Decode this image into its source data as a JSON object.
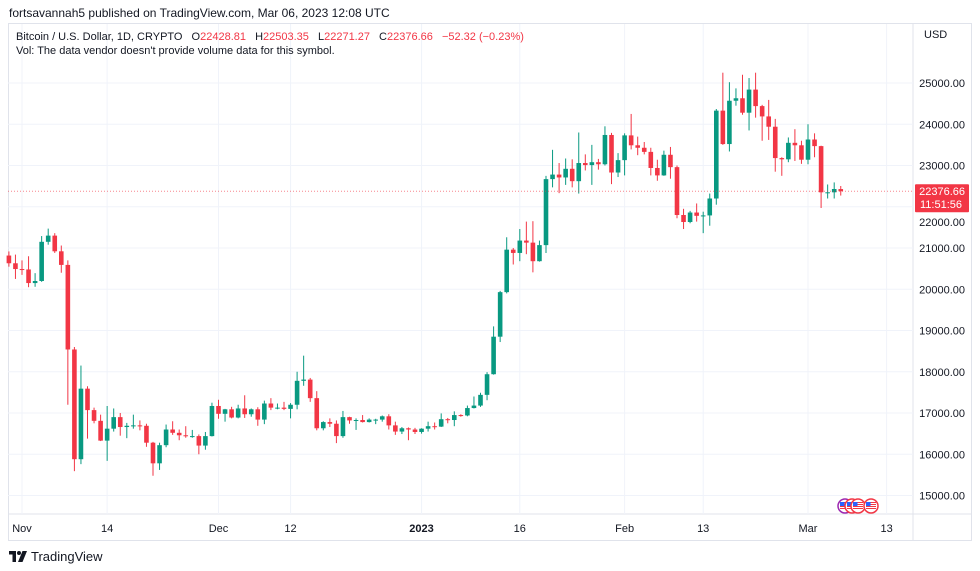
{
  "publisher_line": "fortsavannah5 published on TradingView.com, Mar 06, 2023 12:08 UTC",
  "legend": {
    "symbol": "Bitcoin / U.S. Dollar, 1D, CRYPTO",
    "o_label": "O",
    "o_value": "22428.81",
    "h_label": "H",
    "h_value": "22503.35",
    "l_label": "L",
    "l_value": "22271.27",
    "c_label": "C",
    "c_value": "22376.66",
    "change": "−52.32 (−0.23%)",
    "vol_note": "Vol: The data vendor doesn't provide volume data for this symbol."
  },
  "currency": "USD",
  "last_price": {
    "value": "22376.66",
    "countdown": "11:51:56"
  },
  "brand": "TradingView",
  "colors": {
    "up": "#089981",
    "down": "#f23645",
    "grid": "#f0f3fa",
    "text": "#131722"
  },
  "icons": [
    "economic-events-us-flag-icon",
    "tradingview-logo-icon"
  ],
  "chart_data": {
    "type": "candlestick",
    "title": "Bitcoin / U.S. Dollar, 1D, CRYPTO",
    "ylim": [
      14700,
      25700
    ],
    "grid": true,
    "y_ticks": [
      "15000.00",
      "16000.00",
      "17000.00",
      "18000.00",
      "19000.00",
      "20000.00",
      "21000.00",
      "22000.00",
      "23000.00",
      "24000.00",
      "25000.00"
    ],
    "x_ticks": [
      {
        "date": "2022-11-01",
        "label": "Nov",
        "bold": false
      },
      {
        "date": "2022-11-14",
        "label": "14",
        "bold": false
      },
      {
        "date": "2022-12-01",
        "label": "Dec",
        "bold": false
      },
      {
        "date": "2022-12-12",
        "label": "12",
        "bold": false
      },
      {
        "date": "2023-01-01",
        "label": "2023",
        "bold": true
      },
      {
        "date": "2023-01-16",
        "label": "16",
        "bold": false
      },
      {
        "date": "2023-02-01",
        "label": "Feb",
        "bold": false
      },
      {
        "date": "2023-02-13",
        "label": "13",
        "bold": false
      },
      {
        "date": "2023-03-01",
        "label": "Mar",
        "bold": false
      },
      {
        "date": "2023-03-13",
        "label": "13",
        "bold": false
      }
    ],
    "columns": [
      "date",
      "open",
      "high",
      "low",
      "close"
    ],
    "candles": [
      [
        "2022-10-30",
        20817,
        20917,
        20547,
        20630
      ],
      [
        "2022-10-31",
        20630,
        20840,
        20250,
        20490
      ],
      [
        "2022-11-01",
        20490,
        20700,
        20350,
        20480
      ],
      [
        "2022-11-02",
        20480,
        20800,
        20050,
        20150
      ],
      [
        "2022-11-03",
        20150,
        20390,
        20060,
        20200
      ],
      [
        "2022-11-04",
        20200,
        21290,
        20180,
        21150
      ],
      [
        "2022-11-05",
        21150,
        21470,
        21080,
        21300
      ],
      [
        "2022-11-06",
        21300,
        21360,
        20880,
        20920
      ],
      [
        "2022-11-07",
        20920,
        21060,
        20400,
        20590
      ],
      [
        "2022-11-08",
        20590,
        20700,
        17200,
        18540
      ],
      [
        "2022-11-09",
        18540,
        18600,
        15590,
        15880
      ],
      [
        "2022-11-10",
        15880,
        18150,
        15760,
        17590
      ],
      [
        "2022-11-11",
        17590,
        17650,
        16380,
        17070
      ],
      [
        "2022-11-12",
        17070,
        17130,
        16750,
        16810
      ],
      [
        "2022-11-13",
        16810,
        16960,
        16320,
        16330
      ],
      [
        "2022-11-14",
        16330,
        17170,
        15840,
        16620
      ],
      [
        "2022-11-15",
        16620,
        17110,
        16550,
        16900
      ],
      [
        "2022-11-16",
        16900,
        17000,
        16450,
        16660
      ],
      [
        "2022-11-17",
        16660,
        16760,
        16390,
        16690
      ],
      [
        "2022-11-18",
        16690,
        16960,
        16620,
        16700
      ],
      [
        "2022-11-19",
        16700,
        16820,
        16580,
        16690
      ],
      [
        "2022-11-20",
        16690,
        16740,
        16180,
        16280
      ],
      [
        "2022-11-21",
        16280,
        16300,
        15480,
        15780
      ],
      [
        "2022-11-22",
        15780,
        16280,
        15620,
        16220
      ],
      [
        "2022-11-23",
        16220,
        16720,
        16170,
        16600
      ],
      [
        "2022-11-24",
        16600,
        16800,
        16470,
        16520
      ],
      [
        "2022-11-25",
        16520,
        16600,
        16340,
        16460
      ],
      [
        "2022-11-26",
        16460,
        16680,
        16400,
        16440
      ],
      [
        "2022-11-27",
        16440,
        16590,
        16400,
        16440
      ],
      [
        "2022-11-28",
        16440,
        16480,
        16000,
        16210
      ],
      [
        "2022-11-29",
        16210,
        16540,
        16110,
        16440
      ],
      [
        "2022-11-30",
        16440,
        17250,
        16430,
        17170
      ],
      [
        "2022-12-01",
        17170,
        17320,
        16860,
        16980
      ],
      [
        "2022-12-02",
        16980,
        17100,
        16790,
        17090
      ],
      [
        "2022-12-03",
        17090,
        17150,
        16870,
        16890
      ],
      [
        "2022-12-04",
        16890,
        17200,
        16870,
        17110
      ],
      [
        "2022-12-05",
        17110,
        17430,
        16880,
        16970
      ],
      [
        "2022-12-06",
        16970,
        17110,
        16910,
        17090
      ],
      [
        "2022-12-07",
        17090,
        17140,
        16690,
        16840
      ],
      [
        "2022-12-08",
        16840,
        17300,
        16730,
        17230
      ],
      [
        "2022-12-09",
        17230,
        17360,
        17070,
        17130
      ],
      [
        "2022-12-10",
        17130,
        17230,
        17090,
        17130
      ],
      [
        "2022-12-11",
        17130,
        17270,
        17070,
        17100
      ],
      [
        "2022-12-12",
        17100,
        17240,
        16870,
        17200
      ],
      [
        "2022-12-13",
        17200,
        18000,
        17090,
        17780
      ],
      [
        "2022-12-14",
        17780,
        18390,
        17660,
        17810
      ],
      [
        "2022-12-15",
        17810,
        17850,
        17270,
        17360
      ],
      [
        "2022-12-16",
        17360,
        17530,
        16580,
        16630
      ],
      [
        "2022-12-17",
        16630,
        16800,
        16580,
        16780
      ],
      [
        "2022-12-18",
        16780,
        16870,
        16660,
        16740
      ],
      [
        "2022-12-19",
        16740,
        16820,
        16270,
        16440
      ],
      [
        "2022-12-20",
        16440,
        17050,
        16400,
        16900
      ],
      [
        "2022-12-21",
        16900,
        16910,
        16740,
        16820
      ],
      [
        "2022-12-22",
        16820,
        16870,
        16590,
        16830
      ],
      [
        "2022-12-23",
        16830,
        16950,
        16770,
        16780
      ],
      [
        "2022-12-24",
        16780,
        16870,
        16770,
        16840
      ],
      [
        "2022-12-25",
        16840,
        16860,
        16730,
        16840
      ],
      [
        "2022-12-26",
        16840,
        16940,
        16790,
        16920
      ],
      [
        "2022-12-27",
        16920,
        16970,
        16600,
        16700
      ],
      [
        "2022-12-28",
        16700,
        16790,
        16470,
        16550
      ],
      [
        "2022-12-29",
        16550,
        16660,
        16490,
        16630
      ],
      [
        "2022-12-30",
        16630,
        16650,
        16340,
        16600
      ],
      [
        "2022-12-31",
        16600,
        16640,
        16490,
        16540
      ],
      [
        "2023-01-01",
        16540,
        16630,
        16500,
        16620
      ],
      [
        "2023-01-02",
        16620,
        16790,
        16550,
        16680
      ],
      [
        "2023-01-03",
        16680,
        16770,
        16600,
        16670
      ],
      [
        "2023-01-04",
        16670,
        16990,
        16660,
        16850
      ],
      [
        "2023-01-05",
        16850,
        16880,
        16750,
        16830
      ],
      [
        "2023-01-06",
        16830,
        17040,
        16680,
        16950
      ],
      [
        "2023-01-07",
        16950,
        16970,
        16910,
        16940
      ],
      [
        "2023-01-08",
        16940,
        17180,
        16920,
        17120
      ],
      [
        "2023-01-09",
        17120,
        17400,
        17110,
        17180
      ],
      [
        "2023-01-10",
        17180,
        17490,
        17150,
        17440
      ],
      [
        "2023-01-11",
        17440,
        17990,
        17310,
        17940
      ],
      [
        "2023-01-12",
        17940,
        19100,
        17930,
        18850
      ],
      [
        "2023-01-13",
        18850,
        19960,
        18720,
        19930
      ],
      [
        "2023-01-14",
        19930,
        21260,
        19900,
        20960
      ],
      [
        "2023-01-15",
        20960,
        21000,
        20600,
        20880
      ],
      [
        "2023-01-16",
        20880,
        21460,
        20680,
        21180
      ],
      [
        "2023-01-17",
        21180,
        21640,
        20850,
        21130
      ],
      [
        "2023-01-18",
        21130,
        21650,
        20410,
        20680
      ],
      [
        "2023-01-19",
        20680,
        21180,
        20670,
        21070
      ],
      [
        "2023-01-20",
        21070,
        22750,
        20880,
        22670
      ],
      [
        "2023-01-21",
        22670,
        23380,
        22470,
        22780
      ],
      [
        "2023-01-22",
        22780,
        23060,
        22330,
        22710
      ],
      [
        "2023-01-23",
        22710,
        23170,
        22530,
        22920
      ],
      [
        "2023-01-24",
        22920,
        23150,
        22470,
        22620
      ],
      [
        "2023-01-25",
        22620,
        23800,
        22320,
        23060
      ],
      [
        "2023-01-26",
        23060,
        23270,
        22880,
        23010
      ],
      [
        "2023-01-27",
        23010,
        23500,
        22530,
        23080
      ],
      [
        "2023-01-28",
        23080,
        23160,
        22900,
        23030
      ],
      [
        "2023-01-29",
        23030,
        23950,
        23000,
        23740
      ],
      [
        "2023-01-30",
        23740,
        23790,
        22550,
        22830
      ],
      [
        "2023-01-31",
        22830,
        23300,
        22720,
        23130
      ],
      [
        "2023-02-01",
        23130,
        23780,
        22760,
        23730
      ],
      [
        "2023-02-02",
        23730,
        24250,
        23390,
        23490
      ],
      [
        "2023-02-03",
        23490,
        23700,
        23250,
        23430
      ],
      [
        "2023-02-04",
        23430,
        23570,
        23270,
        23330
      ],
      [
        "2023-02-05",
        23330,
        23430,
        22760,
        22940
      ],
      [
        "2023-02-06",
        22940,
        23140,
        22630,
        22760
      ],
      [
        "2023-02-07",
        22760,
        23360,
        22750,
        23260
      ],
      [
        "2023-02-08",
        23260,
        23450,
        22680,
        22960
      ],
      [
        "2023-02-09",
        22960,
        23000,
        21720,
        21800
      ],
      [
        "2023-02-10",
        21800,
        21950,
        21460,
        21630
      ],
      [
        "2023-02-11",
        21630,
        21900,
        21600,
        21860
      ],
      [
        "2023-02-12",
        21860,
        22080,
        21640,
        21780
      ],
      [
        "2023-02-13",
        21780,
        21880,
        21360,
        21790
      ],
      [
        "2023-02-14",
        21790,
        22320,
        21540,
        22200
      ],
      [
        "2023-02-15",
        22200,
        24370,
        22050,
        24330
      ],
      [
        "2023-02-16",
        24330,
        25250,
        23500,
        23520
      ],
      [
        "2023-02-17",
        23520,
        25020,
        23340,
        24570
      ],
      [
        "2023-02-18",
        24570,
        24870,
        24450,
        24630
      ],
      [
        "2023-02-19",
        24630,
        25200,
        24230,
        24280
      ],
      [
        "2023-02-20",
        24280,
        25120,
        23850,
        24840
      ],
      [
        "2023-02-21",
        24840,
        25250,
        24160,
        24440
      ],
      [
        "2023-02-22",
        24440,
        24470,
        23600,
        24190
      ],
      [
        "2023-02-23",
        24190,
        24590,
        23620,
        23940
      ],
      [
        "2023-02-24",
        23940,
        24130,
        22850,
        23180
      ],
      [
        "2023-02-25",
        23180,
        23200,
        22750,
        23150
      ],
      [
        "2023-02-26",
        23150,
        23680,
        23080,
        23550
      ],
      [
        "2023-02-27",
        23550,
        23880,
        23110,
        23490
      ],
      [
        "2023-02-28",
        23490,
        23600,
        23040,
        23140
      ],
      [
        "2023-03-01",
        23140,
        24000,
        23030,
        23630
      ],
      [
        "2023-03-02",
        23630,
        23780,
        23200,
        23470
      ],
      [
        "2023-03-03",
        23470,
        23480,
        21970,
        22350
      ],
      [
        "2023-03-04",
        22350,
        22540,
        22200,
        22350
      ],
      [
        "2023-03-05",
        22350,
        22590,
        22200,
        22430
      ],
      [
        "2023-03-06",
        22428.81,
        22503.35,
        22271.27,
        22376.66
      ]
    ]
  }
}
